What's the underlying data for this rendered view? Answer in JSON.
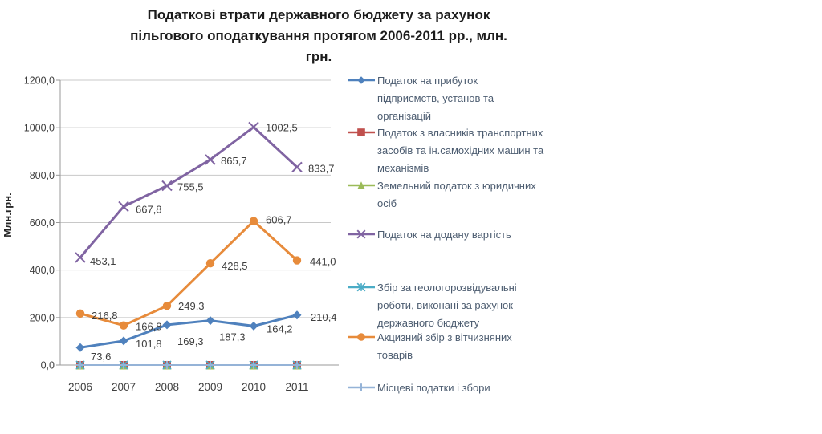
{
  "title_lines": [
    "Податкові втрати державного бюджету за рахунок",
    "пільгового оподаткування протягом 2006-2011 рр., млн.",
    "грн."
  ],
  "chart_data": {
    "type": "line",
    "title": "Податкові втрати державного бюджету за рахунок пільгового оподаткування протягом 2006-2011 рр., млн. грн.",
    "ylabel": "Млн.грн.",
    "xlabel": "",
    "categories": [
      "2006",
      "2007",
      "2008",
      "2009",
      "2010",
      "2011"
    ],
    "ylim": [
      0,
      1200
    ],
    "ytick_values": [
      0,
      200,
      400,
      600,
      800,
      1000,
      1200
    ],
    "ytick_labels": [
      "0,0",
      "200,0",
      "400,0",
      "600,0",
      "800,0",
      "1000,0",
      "1200,0"
    ],
    "grid": true,
    "legend_position": "right",
    "series": [
      {
        "name": "Податок на прибуток підприємств, установ та організацій",
        "name_lines": [
          "Податок на прибуток",
          "підприємств, установ та",
          "організацій"
        ],
        "color": "#4F81BD",
        "marker": "diamond",
        "values": [
          73.6,
          101.8,
          169.3,
          187.3,
          164.2,
          210.4
        ],
        "labels": [
          "73,6",
          "101,8",
          "169,3",
          "187,3",
          "164,2",
          "210,4"
        ]
      },
      {
        "name": "Податок з власників транспортних засобів та ін.самохідних машин та механізмів",
        "name_lines": [
          "Податок з власників транспортних",
          "засобів та ін.самохідних машин та",
          "механізмів"
        ],
        "color": "#C0504D",
        "marker": "square",
        "values": [
          0,
          0,
          0,
          0,
          0,
          0
        ],
        "labels": []
      },
      {
        "name": "Земельний податок з юридичних осіб",
        "name_lines": [
          "Земельний податок з юридичних",
          "осіб"
        ],
        "color": "#9BBB59",
        "marker": "triangle",
        "values": [
          0,
          0,
          0,
          0,
          0,
          0
        ],
        "labels": []
      },
      {
        "name": "Податок на додану вартість",
        "name_lines": [
          "Податок на додану вартість"
        ],
        "color": "#8064A2",
        "marker": "x",
        "values": [
          453.1,
          667.8,
          755.5,
          865.7,
          1002.5,
          833.7
        ],
        "labels": [
          "453,1",
          "667,8",
          "755,5",
          "865,7",
          "1002,5",
          "833,7"
        ]
      },
      {
        "name": "Збір за геологорозвідувальні роботи, виконані за рахунок державного бюджету",
        "name_lines": [
          "Збір за геологорозвідувальні",
          "роботи, виконані за рахунок",
          "державного бюджету"
        ],
        "color": "#4BACC6",
        "marker": "asterisk",
        "values": [
          0,
          0,
          0,
          0,
          0,
          0
        ],
        "labels": []
      },
      {
        "name": "Акцизний збір з вітчизняних товарів",
        "name_lines": [
          "Акцизний збір з вітчизняних",
          "товарів"
        ],
        "color": "#E78B3B",
        "marker": "circle",
        "values": [
          216.8,
          166.8,
          249.3,
          428.5,
          606.7,
          441.0
        ],
        "labels": [
          "216,8",
          "166,8",
          "249,3",
          "428,5",
          "606,7",
          "441,0"
        ]
      },
      {
        "name": "Місцеві податки і збори",
        "name_lines": [
          "Місцеві податки і збори"
        ],
        "color": "#95B3D7",
        "marker": "plus",
        "values": [
          0,
          0,
          0,
          0,
          0,
          0
        ],
        "labels": []
      }
    ]
  }
}
